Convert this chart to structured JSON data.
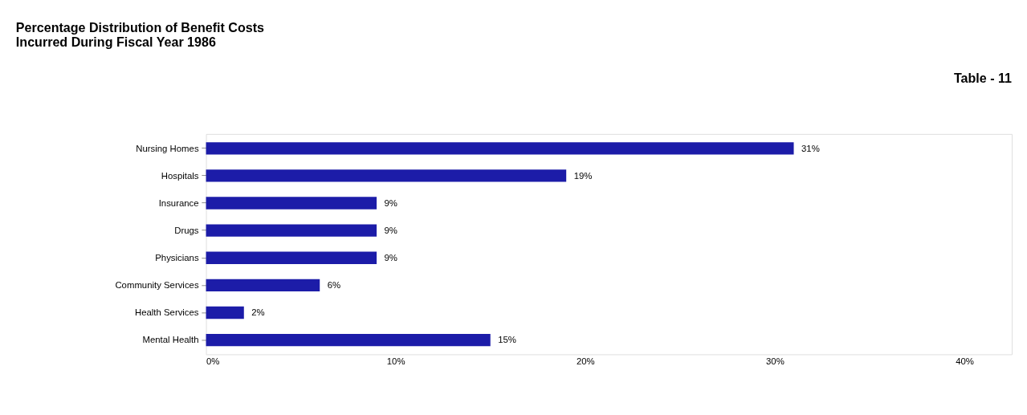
{
  "chart_data": {
    "type": "bar",
    "orientation": "horizontal",
    "title": [
      "Percentage Distribution of Benefit Costs",
      "Incurred During Fiscal Year 1986"
    ],
    "annotations": [
      "Table - 11"
    ],
    "categories": [
      "Nursing Homes",
      "Hospitals",
      "Insurance",
      "Drugs",
      "Physicians",
      "Community Services",
      "Health Services",
      "Mental Health"
    ],
    "values": [
      31,
      19,
      9,
      9,
      9,
      6,
      2,
      15
    ],
    "value_labels": [
      "31%",
      "19%",
      "9%",
      "9%",
      "9%",
      "6%",
      "2%",
      "15%"
    ],
    "color": "#1c1ca8",
    "xlim": [
      0,
      42.5
    ],
    "xticks": [
      {
        "value": 0,
        "label": "0%"
      },
      {
        "value": 10,
        "label": "10%"
      },
      {
        "value": 20,
        "label": "20%"
      },
      {
        "value": 30,
        "label": "30%"
      },
      {
        "value": 40,
        "label": "40%"
      }
    ],
    "grid": false
  }
}
